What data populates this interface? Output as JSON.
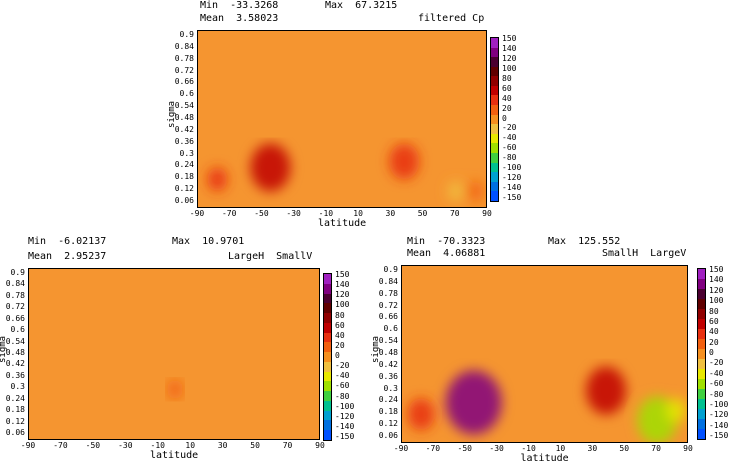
{
  "colorbar": {
    "ticks": [
      "150",
      "140",
      "120",
      "100",
      "80",
      "60",
      "40",
      "20",
      "0",
      "-20",
      "-40",
      "-60",
      "-80",
      "-100",
      "-120",
      "-140",
      "-150"
    ],
    "colors": [
      "#a020c0",
      "#800080",
      "#4b0030",
      "#600000",
      "#900000",
      "#c00000",
      "#e83010",
      "#f26010",
      "#f59020",
      "#f0c040",
      "#e8e800",
      "#a0e000",
      "#40d040",
      "#00c090",
      "#00a0d0",
      "#0070e0",
      "#0050ff"
    ]
  },
  "ytick_labels": [
    "0.9",
    "0.84",
    "0.78",
    "0.72",
    "0.66",
    "0.6",
    "0.54",
    "0.48",
    "0.42",
    "0.36",
    "0.3",
    "0.24",
    "0.18",
    "0.12",
    "0.06"
  ],
  "xtick_labels": [
    "-90",
    "-70",
    "-50",
    "-30",
    "-10",
    "10",
    "30",
    "50",
    "70",
    "90"
  ],
  "panels": [
    {
      "min_label": "Min  -33.3268",
      "max_label": "Max  67.3215",
      "mean_label": "Mean  3.58023",
      "title": "filtered Cp",
      "xlabel": "latitude",
      "ylabel": "sigma"
    },
    {
      "min_label": "Min  -6.02137",
      "max_label": "Max  10.9701",
      "mean_label": "Mean  2.95237",
      "title": "LargeH  SmallV",
      "xlabel": "latitude",
      "ylabel": "sigma"
    },
    {
      "min_label": "Min  -70.3323",
      "max_label": "Max  125.552",
      "mean_label": "Mean  4.06881",
      "title": "SmallH  LargeV",
      "xlabel": "latitude",
      "ylabel": "sigma"
    }
  ],
  "chart_data": [
    {
      "type": "heatmap",
      "title": "filtered Cp",
      "xlabel": "latitude",
      "ylabel": "sigma",
      "x_range": [
        -90,
        90
      ],
      "y_range": [
        0.03,
        0.93
      ],
      "colorbar_range": [
        -150,
        150
      ],
      "stats": {
        "min": -33.3268,
        "max": 67.3215,
        "mean": 3.58023
      },
      "features": [
        {
          "lat": -45,
          "sigma": 0.24,
          "value": 60
        },
        {
          "lat": 38,
          "sigma": 0.27,
          "value": 45
        },
        {
          "lat": -78,
          "sigma": 0.18,
          "value": 30
        },
        {
          "lat": 70,
          "sigma": 0.12,
          "value": -20
        },
        {
          "lat": 82,
          "sigma": 0.12,
          "value": 10
        }
      ]
    },
    {
      "type": "heatmap",
      "title": "LargeH  SmallV",
      "xlabel": "latitude",
      "ylabel": "sigma",
      "x_range": [
        -90,
        90
      ],
      "y_range": [
        0.03,
        0.93
      ],
      "colorbar_range": [
        -150,
        150
      ],
      "stats": {
        "min": -6.02137,
        "max": 10.9701,
        "mean": 2.95237
      },
      "features": [
        {
          "lat": 0,
          "sigma": 0.3,
          "value": 10
        }
      ]
    },
    {
      "type": "heatmap",
      "title": "SmallH  LargeV",
      "xlabel": "latitude",
      "ylabel": "sigma",
      "x_range": [
        -90,
        90
      ],
      "y_range": [
        0.03,
        0.93
      ],
      "colorbar_range": [
        -150,
        150
      ],
      "stats": {
        "min": -70.3323,
        "max": 125.552,
        "mean": 4.06881
      },
      "features": [
        {
          "lat": -45,
          "sigma": 0.24,
          "value": 125
        },
        {
          "lat": 38,
          "sigma": 0.3,
          "value": 60
        },
        {
          "lat": -78,
          "sigma": 0.18,
          "value": 40
        },
        {
          "lat": 70,
          "sigma": 0.15,
          "value": -60
        },
        {
          "lat": 82,
          "sigma": 0.2,
          "value": -30
        }
      ]
    }
  ]
}
